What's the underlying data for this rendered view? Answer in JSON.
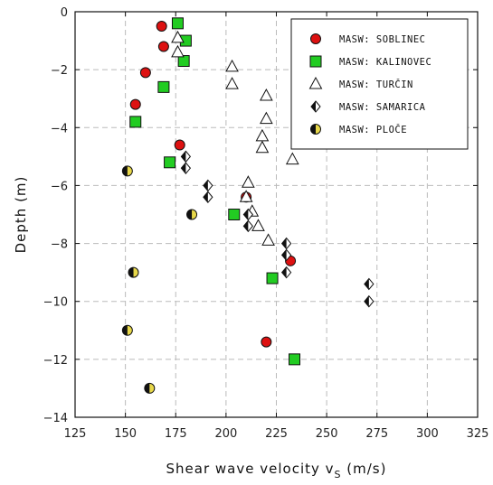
{
  "chart_data": {
    "type": "scatter",
    "xlabel": "Shear wave velocity v",
    "xlabel_sub": "S",
    "xlabel_unit": " (m/s)",
    "ylabel": "Depth (m)",
    "xlim": [
      125,
      325
    ],
    "ylim": [
      -14,
      0
    ],
    "xticks": [
      125,
      150,
      175,
      200,
      225,
      250,
      275,
      300,
      325
    ],
    "yticks": [
      0,
      -2,
      -4,
      -6,
      -8,
      -10,
      -12,
      -14
    ],
    "grid": true,
    "legend_position": "top-right",
    "series": [
      {
        "name": "MASW: SOBLINEC",
        "marker": "circle",
        "color": "#dd1111",
        "points": [
          [
            168,
            -0.5
          ],
          [
            169,
            -1.2
          ],
          [
            160,
            -2.1
          ],
          [
            155,
            -3.2
          ],
          [
            177,
            -4.6
          ],
          [
            210,
            -6.4
          ],
          [
            232,
            -8.6
          ],
          [
            220,
            -11.4
          ]
        ]
      },
      {
        "name": "MASW: KALINOVEC",
        "marker": "square",
        "color": "#22cc22",
        "points": [
          [
            176,
            -0.4
          ],
          [
            180,
            -1.0
          ],
          [
            179,
            -1.7
          ],
          [
            169,
            -2.6
          ],
          [
            155,
            -3.8
          ],
          [
            172,
            -5.2
          ],
          [
            204,
            -7.0
          ],
          [
            223,
            -9.2
          ],
          [
            234,
            -12.0
          ]
        ]
      },
      {
        "name": "MASW: TURČIN",
        "marker": "triangle",
        "color": "#ffffff",
        "points": [
          [
            176,
            -0.9
          ],
          [
            176,
            -1.4
          ],
          [
            203,
            -1.9
          ],
          [
            203,
            -2.5
          ],
          [
            220,
            -2.9
          ],
          [
            220,
            -3.7
          ],
          [
            218,
            -4.3
          ],
          [
            218,
            -4.7
          ],
          [
            233,
            -5.1
          ],
          [
            211,
            -5.9
          ],
          [
            210,
            -6.4
          ],
          [
            213,
            -6.9
          ],
          [
            216,
            -7.4
          ],
          [
            221,
            -7.9
          ]
        ]
      },
      {
        "name": "MASW: SAMARICA",
        "marker": "diamond",
        "color": "#111111",
        "points": [
          [
            180,
            -5.0
          ],
          [
            180,
            -5.4
          ],
          [
            191,
            -6.0
          ],
          [
            191,
            -6.4
          ],
          [
            211,
            -7.0
          ],
          [
            211,
            -7.4
          ],
          [
            230,
            -8.0
          ],
          [
            230,
            -8.4
          ],
          [
            230,
            -9.0
          ],
          [
            271,
            -9.4
          ],
          [
            271,
            -10.0
          ]
        ]
      },
      {
        "name": "MASW: PLOČE",
        "marker": "halfcircle",
        "color": "#e8d84a",
        "points": [
          [
            151,
            -5.5
          ],
          [
            183,
            -7.0
          ],
          [
            154,
            -9.0
          ],
          [
            151,
            -11.0
          ],
          [
            162,
            -13.0
          ]
        ]
      }
    ]
  }
}
